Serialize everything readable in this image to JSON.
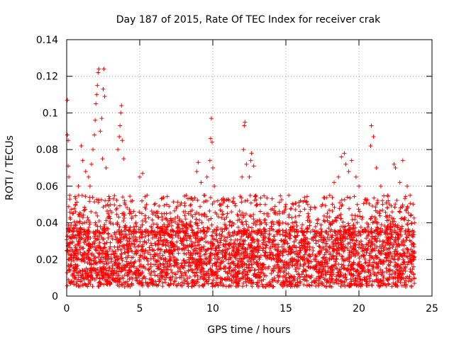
{
  "chart_data": {
    "type": "scatter",
    "title": "Day 187 of 2015, Rate Of TEC Index for receiver crak",
    "xlabel": "GPS time / hours",
    "ylabel": "ROTI / TECUs",
    "xlim": [
      0,
      25
    ],
    "ylim": [
      0,
      0.14
    ],
    "xticks": [
      0,
      5,
      10,
      15,
      20,
      25
    ],
    "xtick_labels": [
      "0",
      "5",
      "10",
      "15",
      "20",
      "25"
    ],
    "yticks": [
      0,
      0.02,
      0.04,
      0.06,
      0.08,
      0.1,
      0.12,
      0.14
    ],
    "ytick_labels": [
      "0",
      "0.02",
      "0.04",
      "0.06",
      "0.08",
      "0.1",
      "0.12",
      "0.14"
    ],
    "grid": true,
    "marker": "+",
    "marker_color": "#ff0000",
    "points_x": [
      0.05,
      0.05,
      0.1,
      0.1,
      0.15,
      0.2,
      0.4,
      0.6,
      0.8,
      1.0,
      1.1,
      1.3,
      1.5,
      1.6,
      1.7,
      1.8,
      1.9,
      1.95,
      2.0,
      2.05,
      2.1,
      2.15,
      2.2,
      2.3,
      2.4,
      2.45,
      2.5,
      2.55,
      2.6,
      2.7,
      3.0,
      3.5,
      3.6,
      3.65,
      3.7,
      3.75,
      3.8,
      3.9,
      4.0,
      4.5,
      5.0,
      5.2,
      5.5,
      6.0,
      6.5,
      7.0,
      7.5,
      8.0,
      8.5,
      8.9,
      9.0,
      9.2,
      9.4,
      9.6,
      9.8,
      9.85,
      9.9,
      9.95,
      10.0,
      10.1,
      10.5,
      11.0,
      11.5,
      12.0,
      12.1,
      12.15,
      12.2,
      12.3,
      12.5,
      12.6,
      12.65,
      12.8,
      13.0,
      13.5,
      14.0,
      14.5,
      15.0,
      15.2,
      15.5,
      16.0,
      16.5,
      17.0,
      17.5,
      18.0,
      18.3,
      18.6,
      18.8,
      19.0,
      19.1,
      19.3,
      19.5,
      19.8,
      20.0,
      20.5,
      20.8,
      20.85,
      21.0,
      21.2,
      21.5,
      22.0,
      22.4,
      22.5,
      22.8,
      23.0,
      23.3,
      23.5,
      23.8
    ],
    "points_y": [
      0.107,
      0.088,
      0.085,
      0.071,
      0.065,
      0.055,
      0.045,
      0.05,
      0.06,
      0.082,
      0.074,
      0.068,
      0.065,
      0.06,
      0.072,
      0.08,
      0.088,
      0.096,
      0.105,
      0.11,
      0.115,
      0.122,
      0.124,
      0.09,
      0.097,
      0.075,
      0.113,
      0.124,
      0.109,
      0.07,
      0.05,
      0.08,
      0.087,
      0.093,
      0.1,
      0.104,
      0.085,
      0.075,
      0.05,
      0.052,
      0.065,
      0.067,
      0.055,
      0.05,
      0.045,
      0.049,
      0.048,
      0.046,
      0.05,
      0.068,
      0.073,
      0.062,
      0.055,
      0.065,
      0.074,
      0.086,
      0.097,
      0.084,
      0.07,
      0.06,
      0.05,
      0.045,
      0.035,
      0.065,
      0.08,
      0.093,
      0.095,
      0.072,
      0.065,
      0.074,
      0.078,
      0.071,
      0.05,
      0.045,
      0.04,
      0.04,
      0.05,
      0.055,
      0.05,
      0.052,
      0.05,
      0.048,
      0.05,
      0.055,
      0.062,
      0.065,
      0.076,
      0.078,
      0.072,
      0.068,
      0.074,
      0.065,
      0.06,
      0.052,
      0.082,
      0.093,
      0.087,
      0.07,
      0.06,
      0.052,
      0.072,
      0.07,
      0.062,
      0.074,
      0.06,
      0.055,
      0.04
    ],
    "dense_band": {
      "x_range": [
        0,
        23.8
      ],
      "y_range": [
        0.005,
        0.035
      ],
      "note": "dense cloud of points across the full day"
    }
  }
}
